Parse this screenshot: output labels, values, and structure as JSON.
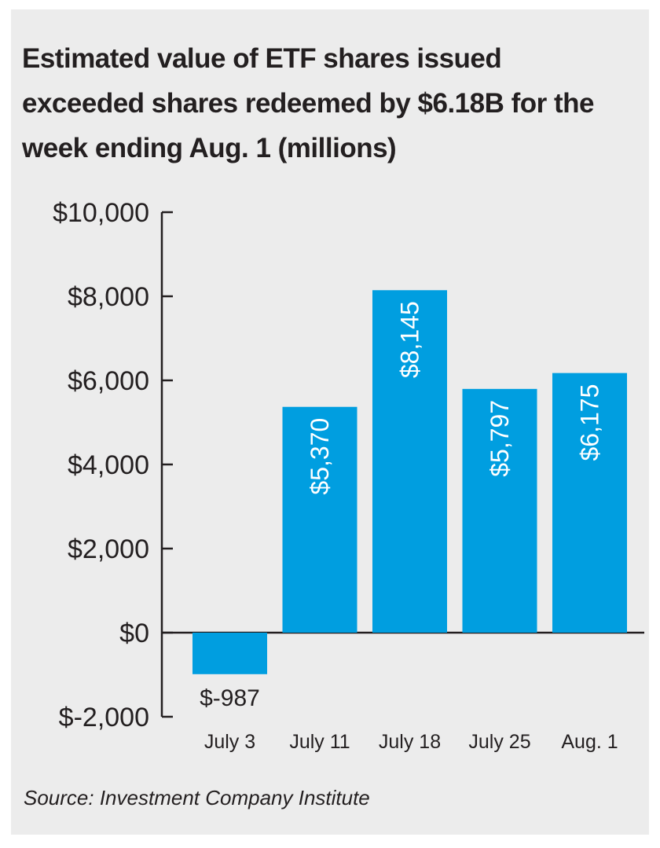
{
  "chart_data": {
    "type": "bar",
    "title": "Estimated value of ETF shares issued exceeded shares redeemed by $6.18B for the week ending Aug. 1 (millions)",
    "categories": [
      "July 3",
      "July 11",
      "July 18",
      "July 25",
      "Aug. 1"
    ],
    "values": [
      -987,
      5370,
      8145,
      5797,
      6175
    ],
    "value_labels": [
      "$-987",
      "$5,370",
      "$8,145",
      "$5,797",
      "$6,175"
    ],
    "ylim": [
      -2000,
      10000
    ],
    "yticks": [
      10000,
      8000,
      6000,
      4000,
      2000,
      0,
      -2000
    ],
    "ytick_labels": [
      "$10,000",
      "$8,000",
      "$6,000",
      "$4,000",
      "$2,000",
      "$0",
      "$-2,000"
    ],
    "xlabel": "",
    "ylabel": "",
    "bar_color": "#009ee0",
    "grid": false,
    "legend": "none"
  },
  "source": "Source: Investment Company Institute"
}
